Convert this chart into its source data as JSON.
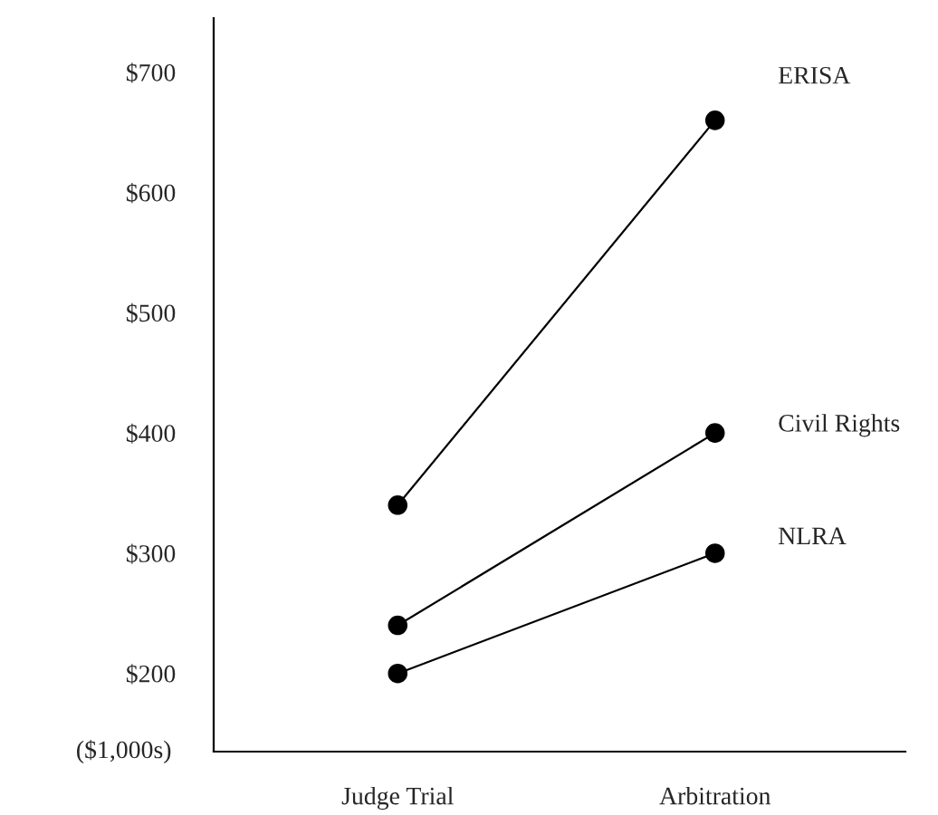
{
  "chart_data": {
    "type": "line",
    "ylabel": "($1,000s)",
    "categories": [
      "Judge Trial",
      "Arbitration"
    ],
    "series": [
      {
        "name": "ERISA",
        "color": "#000000",
        "values": [
          340,
          660
        ]
      },
      {
        "name": "Civil Rights",
        "color": "#000000",
        "values": [
          240,
          400
        ]
      },
      {
        "name": "NLRA",
        "color": "#000000",
        "values": [
          200,
          300
        ]
      }
    ],
    "ylim": [
      135,
      745
    ],
    "yticks": [
      {
        "value": 200,
        "label": "$200"
      },
      {
        "value": 300,
        "label": "$300"
      },
      {
        "value": 400,
        "label": "$400"
      },
      {
        "value": 500,
        "label": "$500"
      },
      {
        "value": 600,
        "label": "$600"
      },
      {
        "value": 700,
        "label": "$700"
      }
    ],
    "marker": "circle",
    "line_style": "solid",
    "grid": false,
    "legend": false
  }
}
